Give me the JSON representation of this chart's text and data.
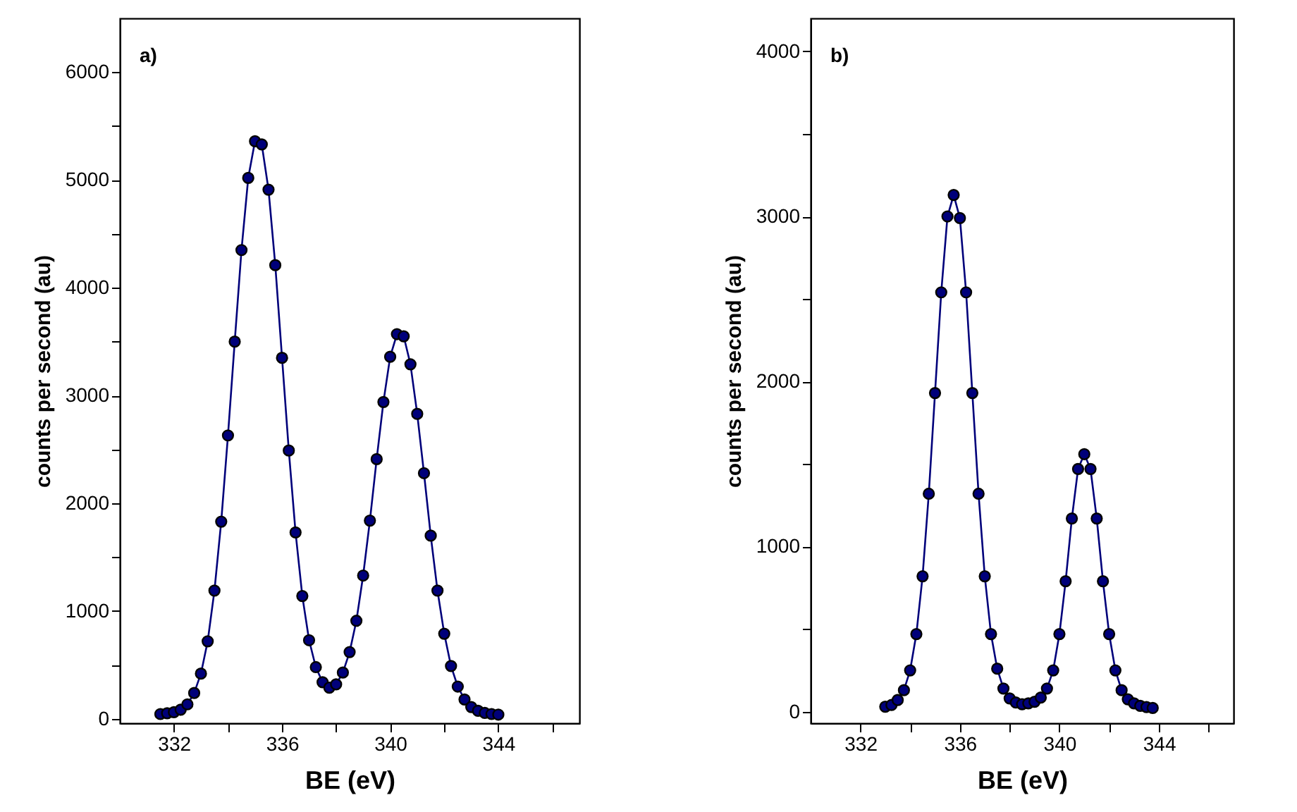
{
  "chart_data": [
    {
      "type": "line",
      "xlabel": "BE (eV)",
      "ylabel": "counts per second (au)",
      "annotations": [
        "a)"
      ],
      "marker": "circle",
      "line_style": "solid",
      "xlim": [
        330,
        347
      ],
      "ylim": [
        -40,
        6500
      ],
      "xticks": [
        332,
        {
          "value": 334,
          "label": null
        },
        336,
        {
          "value": 338,
          "label": null
        },
        340,
        {
          "value": 342,
          "label": null
        },
        344,
        {
          "value": 346,
          "label": null
        }
      ],
      "yticks": [
        0,
        {
          "value": 500,
          "label": null
        },
        1000,
        {
          "value": 1500,
          "label": null
        },
        2000,
        {
          "value": 2500,
          "label": null
        },
        3000,
        {
          "value": 3500,
          "label": null
        },
        4000,
        {
          "value": 4500,
          "label": null
        },
        5000,
        {
          "value": 5500,
          "label": null
        },
        6000
      ],
      "x": [
        331.5,
        331.75,
        332,
        332.25,
        332.5,
        332.75,
        333,
        333.25,
        333.5,
        333.75,
        334,
        334.25,
        334.5,
        334.75,
        335,
        335.25,
        335.5,
        335.75,
        336,
        336.25,
        336.5,
        336.75,
        337,
        337.25,
        337.5,
        337.75,
        338,
        338.25,
        338.5,
        338.75,
        339,
        339.25,
        339.5,
        339.75,
        340,
        340.25,
        340.5,
        340.75,
        341,
        341.25,
        341.5,
        341.75,
        342,
        342.25,
        342.5,
        342.75,
        343,
        343.25,
        343.5,
        343.75,
        344
      ],
      "series": [
        {
          "color": "#00007a",
          "values": [
            45,
            52,
            62,
            85,
            135,
            240,
            420,
            720,
            1190,
            1830,
            2630,
            3500,
            4350,
            5020,
            5360,
            5330,
            4910,
            4210,
            3350,
            2490,
            1730,
            1140,
            730,
            480,
            340,
            290,
            320,
            430,
            620,
            910,
            1330,
            1840,
            2410,
            2940,
            3360,
            3570,
            3550,
            3290,
            2830,
            2280,
            1700,
            1190,
            790,
            490,
            300,
            180,
            110,
            75,
            55,
            45,
            40
          ]
        }
      ]
    },
    {
      "type": "line",
      "xlabel": "BE (eV)",
      "ylabel": "counts per second (au)",
      "annotations": [
        "b)"
      ],
      "marker": "circle",
      "line_style": "solid",
      "xlim": [
        330,
        347
      ],
      "ylim": [
        -70,
        4200
      ],
      "xticks": [
        332,
        {
          "value": 334,
          "label": null
        },
        336,
        {
          "value": 338,
          "label": null
        },
        340,
        {
          "value": 342,
          "label": null
        },
        344,
        {
          "value": 346,
          "label": null
        }
      ],
      "yticks": [
        0,
        {
          "value": 500,
          "label": null
        },
        1000,
        {
          "value": 1500,
          "label": null
        },
        2000,
        {
          "value": 2500,
          "label": null
        },
        3000,
        {
          "value": 3500,
          "label": null
        },
        4000
      ],
      "x": [
        333,
        333.25,
        333.5,
        333.75,
        334,
        334.25,
        334.5,
        334.75,
        335,
        335.25,
        335.5,
        335.75,
        336,
        336.25,
        336.5,
        336.75,
        337,
        337.25,
        337.5,
        337.75,
        338,
        338.25,
        338.5,
        338.75,
        339,
        339.25,
        339.5,
        339.75,
        340,
        340.25,
        340.5,
        340.75,
        341,
        341.25,
        341.5,
        341.75,
        342,
        342.25,
        342.5,
        342.75,
        343,
        343.25,
        343.5,
        343.75
      ],
      "series": [
        {
          "color": "#00007a",
          "values": [
            30,
            40,
            70,
            130,
            250,
            470,
            820,
            1320,
            1930,
            2540,
            3000,
            3130,
            2990,
            2540,
            1930,
            1320,
            820,
            470,
            260,
            140,
            80,
            55,
            45,
            50,
            60,
            85,
            140,
            250,
            470,
            790,
            1170,
            1470,
            1560,
            1470,
            1170,
            790,
            470,
            250,
            130,
            75,
            50,
            35,
            28,
            22
          ]
        }
      ]
    }
  ]
}
